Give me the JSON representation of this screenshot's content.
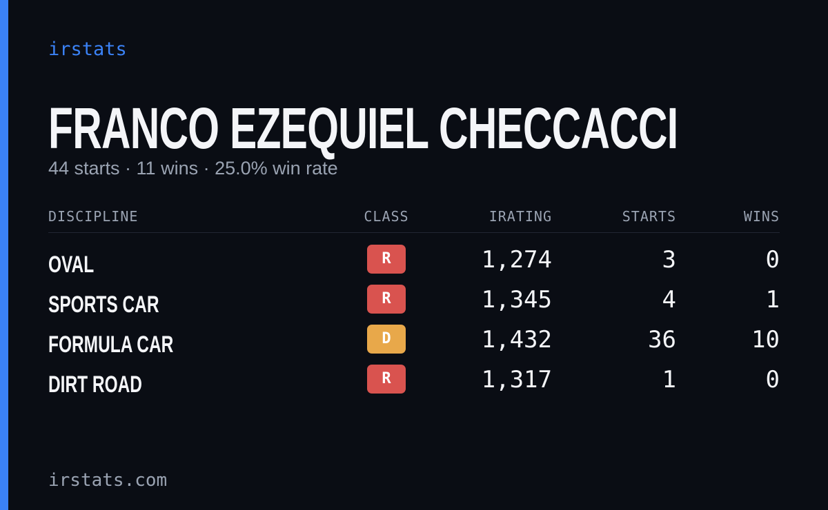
{
  "brand": "irstats",
  "header": {
    "title": "FRANCO EZEQUIEL CHECCACCI",
    "subtitle": "44 starts · 11 wins · 25.0% win rate"
  },
  "table": {
    "columns": [
      "DISCIPLINE",
      "CLASS",
      "IRATING",
      "STARTS",
      "WINS"
    ],
    "rows": [
      {
        "discipline": "OVAL",
        "class": "R",
        "color": "#d9534f",
        "irating": "1,274",
        "starts": "3",
        "wins": "0"
      },
      {
        "discipline": "SPORTS CAR",
        "class": "R",
        "color": "#d9534f",
        "irating": "1,345",
        "starts": "4",
        "wins": "1"
      },
      {
        "discipline": "FORMULA CAR",
        "class": "D",
        "color": "#e8a84a",
        "irating": "1,432",
        "starts": "36",
        "wins": "10"
      },
      {
        "discipline": "DIRT ROAD",
        "class": "R",
        "color": "#d9534f",
        "irating": "1,317",
        "starts": "1",
        "wins": "0"
      }
    ]
  },
  "footer": "irstats.com"
}
